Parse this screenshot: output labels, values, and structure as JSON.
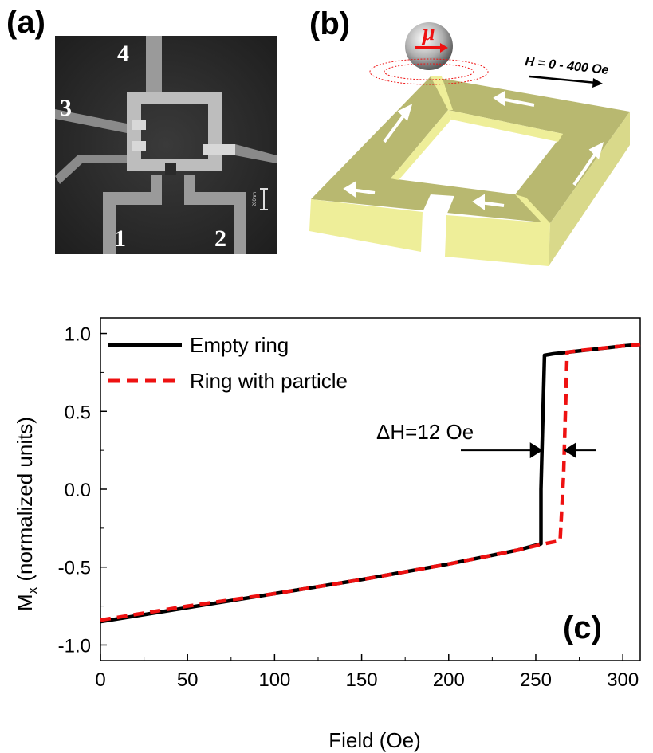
{
  "panels": {
    "a": {
      "label": "(a)",
      "electrodes": [
        "1",
        "2",
        "3",
        "4"
      ],
      "scale_bar_text": "200nm"
    },
    "b": {
      "label": "(b)",
      "particle_symbol": "μ",
      "field_label": "H = 0 - 400 Oe"
    },
    "c": {
      "label": "(c)"
    }
  },
  "colors": {
    "empty_ring": "#000000",
    "ring_with_particle": "#ee1111",
    "ring_top": "#b8b870",
    "ring_side": "#eeee99",
    "ring_side_dark": "#d9d98a"
  },
  "chart_data": {
    "type": "line",
    "xlabel": "Field (Oe)",
    "ylabel": "M_x (normalized units)",
    "ylabel_main": "M",
    "ylabel_sub": "x",
    "ylabel_rest": " (normalized units)",
    "xlim": [
      0,
      310
    ],
    "ylim": [
      -1.1,
      1.1
    ],
    "xticks": [
      0,
      50,
      100,
      150,
      200,
      250,
      300
    ],
    "yticks": [
      1.0,
      0.5,
      0.0,
      -0.5,
      -1.0
    ],
    "ytick_labels": [
      "1.0",
      "0.5",
      "0.0",
      "-0.5",
      "-1.0"
    ],
    "legend_position": "top-left",
    "series": [
      {
        "name": "Empty ring",
        "style": "solid",
        "x": [
          0,
          50,
          100,
          150,
          200,
          240,
          253,
          253,
          255,
          260,
          300,
          310
        ],
        "y": [
          -0.85,
          -0.76,
          -0.67,
          -0.58,
          -0.48,
          -0.39,
          -0.35,
          0.0,
          0.86,
          0.87,
          0.92,
          0.93
        ]
      },
      {
        "name": "Ring with particle",
        "style": "dashed",
        "x": [
          0,
          50,
          100,
          150,
          200,
          240,
          255,
          264,
          266,
          268,
          275,
          300,
          310
        ],
        "y": [
          -0.84,
          -0.75,
          -0.67,
          -0.58,
          -0.48,
          -0.39,
          -0.35,
          -0.33,
          0.1,
          0.88,
          0.89,
          0.92,
          0.93
        ]
      }
    ],
    "annotation": {
      "text": "ΔH=12 Oe",
      "x_left": 254,
      "x_right": 266,
      "y": 0.25
    }
  }
}
